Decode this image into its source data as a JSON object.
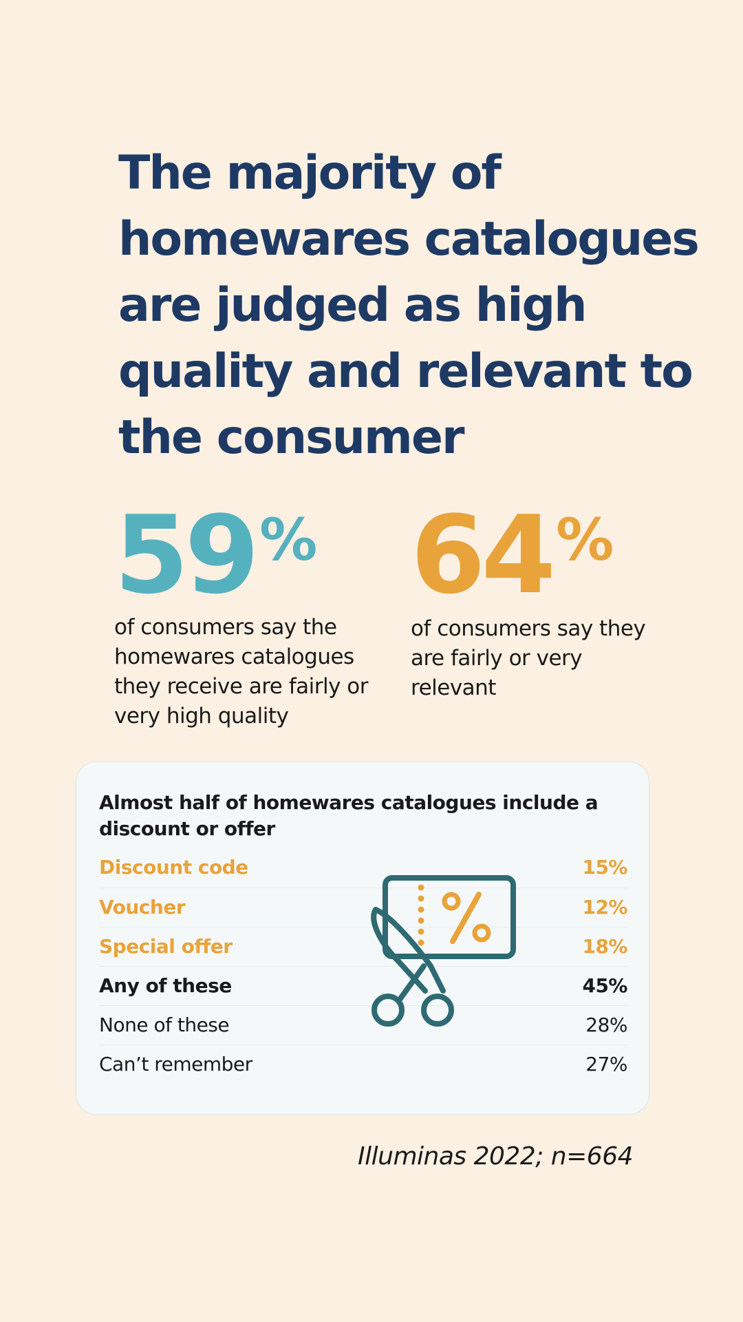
{
  "colors": {
    "background": "#FBF0E2",
    "navy": "#1E3A64",
    "teal": "#56B1BF",
    "orange": "#E8A33A",
    "text_dark": "#1A1A1A",
    "card_bg": "#F4F8F9",
    "card_border": "#DCE6E8",
    "row_divider": "#E6EEF0",
    "icon_teal": "#2F6A72"
  },
  "headline": "The majority of homewares catalogues are judged as high quality and relevant to the consumer",
  "stats": [
    {
      "number": "59",
      "suffix": "%",
      "description": "of consumers say the homewares catalogues they receive are fairly or very high quality"
    },
    {
      "number": "64",
      "suffix": "%",
      "description": "of consumers say they are fairly or very relevant"
    }
  ],
  "card": {
    "title": "Almost half of homewares catalogues include a discount or offer",
    "icon": "scissors-coupon-percent-icon",
    "rows": [
      {
        "label": "Discount code",
        "value": "15%",
        "style": "accent"
      },
      {
        "label": "Voucher",
        "value": "12%",
        "style": "accent"
      },
      {
        "label": "Special offer",
        "value": "18%",
        "style": "accent"
      },
      {
        "label": "Any of these",
        "value": "45%",
        "style": "bold"
      },
      {
        "label": "None of these",
        "value": "28%",
        "style": "normal"
      },
      {
        "label": "Can’t remember",
        "value": "27%",
        "style": "normal"
      }
    ]
  },
  "source": "Illuminas 2022; n=664"
}
